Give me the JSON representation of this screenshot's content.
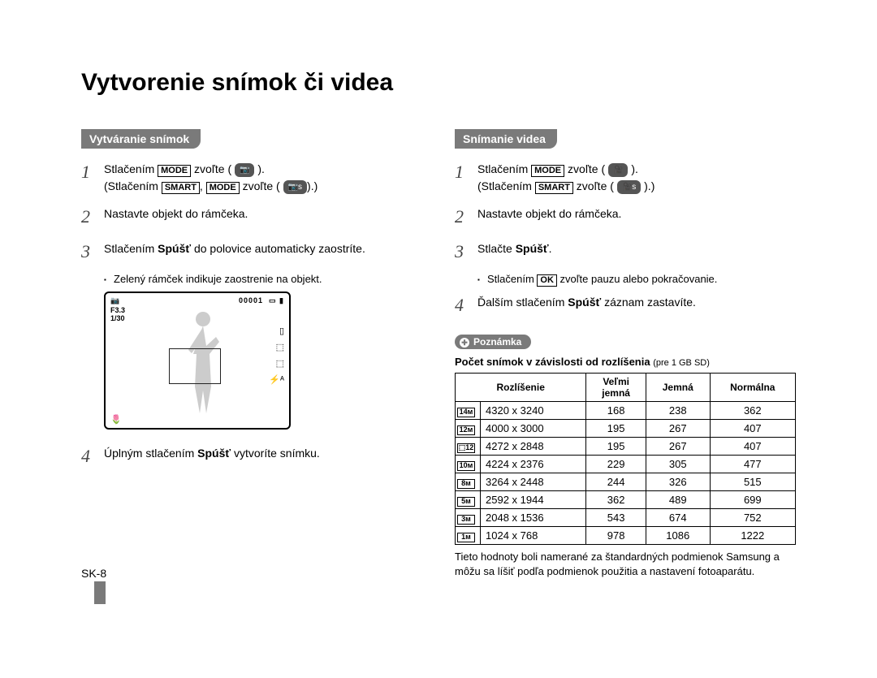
{
  "title": "Vytvorenie snímok či videa",
  "pageNumber": "SK-8",
  "left": {
    "header": "Vytváranie snímok",
    "steps": [
      {
        "num": "1",
        "parts": [
          "Stlačením ",
          {
            "box": "MODE"
          },
          " zvoľte ( ",
          {
            "pill": "📷"
          },
          " ).<br>(Stlačením ",
          {
            "box": "SMART"
          },
          ", ",
          {
            "box": "MODE"
          },
          " zvoľte ( ",
          {
            "pill": "📷s"
          },
          ").)"
        ]
      },
      {
        "num": "2",
        "text": "Nastavte objekt do rámčeka."
      },
      {
        "num": "3",
        "html": "Stlačením <b>Spúšť</b> do polovice automaticky zaostríte."
      },
      {
        "num": "4",
        "html": "Úplným stlačením <b>Spúšť</b> vytvoríte snímku."
      }
    ],
    "bullet3": "Zelený rámček indikuje zaostrenie na objekt.",
    "preview": {
      "topRight": "00001",
      "tl1": "📷",
      "tl2": "F3.3\n1/30",
      "sideIcons": [
        "▯",
        "⬚",
        "⬚",
        "⚡ᴬ"
      ],
      "bl": "🌷"
    }
  },
  "right": {
    "header": "Snímanie videa",
    "steps": [
      {
        "num": "1",
        "parts": [
          "Stlačením ",
          {
            "box": "MODE"
          },
          " zvoľte ( ",
          {
            "pill": "🎥"
          },
          " ).<br>(Stlačením ",
          {
            "box": "SMART"
          },
          " zvoľte ( ",
          {
            "pill": "🎥s"
          },
          " ).)"
        ]
      },
      {
        "num": "2",
        "text": "Nastavte objekt do rámčeka."
      },
      {
        "num": "3",
        "html": "Stlačte <b>Spúšť</b>."
      },
      {
        "num": "4",
        "html": "Ďalším stlačením <b>Spúšť</b> záznam zastavíte."
      }
    ],
    "bullet3": [
      "Stlačením ",
      {
        "box": "OK"
      },
      " zvoľte pauzu alebo pokračovanie."
    ],
    "noteLabel": "Poznámka",
    "noteTitle": "Počet snímok v závislosti od rozlíšenia",
    "noteTitleSmall": "(pre 1 GB SD)",
    "table": {
      "headers": [
        "Rozlíšenie",
        "Veľmi jemná",
        "Jemná",
        "Normálna"
      ],
      "rows": [
        {
          "icon": "14ᴍ",
          "dim": "4320 x 3240",
          "v": [
            "168",
            "238",
            "362"
          ]
        },
        {
          "icon": "12ᴍ",
          "dim": "4000 x 3000",
          "v": [
            "195",
            "267",
            "407"
          ]
        },
        {
          "icon": "⬚12",
          "dim": "4272 x 2848",
          "v": [
            "195",
            "267",
            "407"
          ]
        },
        {
          "icon": "10ᴍ",
          "dim": "4224 x 2376",
          "v": [
            "229",
            "305",
            "477"
          ]
        },
        {
          "icon": "8ᴍ",
          "dim": "3264 x 2448",
          "v": [
            "244",
            "326",
            "515"
          ]
        },
        {
          "icon": "5ᴍ",
          "dim": "2592 x 1944",
          "v": [
            "362",
            "489",
            "699"
          ]
        },
        {
          "icon": "3ᴍ",
          "dim": "2048 x 1536",
          "v": [
            "543",
            "674",
            "752"
          ]
        },
        {
          "icon": "1ᴍ",
          "dim": "1024 x 768",
          "v": [
            "978",
            "1086",
            "1222"
          ]
        }
      ]
    },
    "footnote": "Tieto hodnoty boli namerané za štandardných podmienok Samsung a môžu sa líšiť podľa podmienok použitia a nastavení fotoaparátu."
  }
}
